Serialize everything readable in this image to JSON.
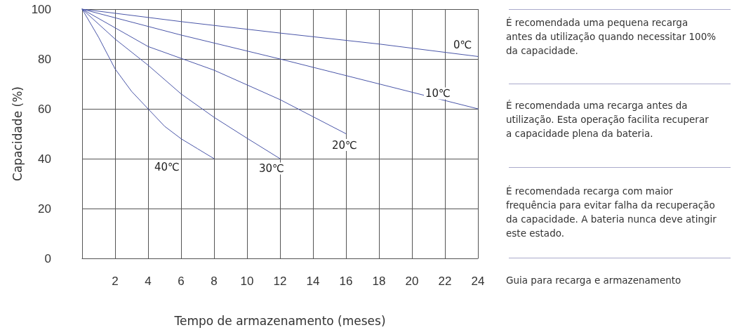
{
  "chart_data": {
    "type": "line",
    "xlabel": "Tempo de armazenamento (meses)",
    "ylabel": "Capacidade (%)",
    "xlim": [
      0,
      24
    ],
    "xticks": [
      2,
      4,
      6,
      8,
      10,
      12,
      14,
      16,
      18,
      20,
      22,
      24
    ],
    "ylim": [
      0,
      100
    ],
    "yticks": [
      0,
      20,
      40,
      60,
      80,
      100
    ],
    "grid": true,
    "marker": "none",
    "line_style": "solid",
    "series": [
      {
        "name": "0℃",
        "color": "#4a56a8",
        "x": [
          0,
          6,
          12,
          18,
          24
        ],
        "values": [
          100,
          95,
          90.4,
          86,
          81
        ]
      },
      {
        "name": "10℃",
        "color": "#4a56a8",
        "x": [
          0,
          6,
          12,
          18,
          24
        ],
        "values": [
          100,
          89.6,
          80,
          70,
          60
        ]
      },
      {
        "name": "20℃",
        "color": "#4a56a8",
        "x": [
          0,
          4,
          8,
          12,
          16
        ],
        "values": [
          100,
          85,
          75.5,
          63.7,
          50
        ]
      },
      {
        "name": "30℃",
        "color": "#4a56a8",
        "x": [
          0,
          2,
          4,
          6,
          8,
          10,
          12
        ],
        "values": [
          100,
          88,
          77.5,
          66,
          56.6,
          48.2,
          40
        ]
      },
      {
        "name": "40℃",
        "color": "#4a56a8",
        "x": [
          0,
          1,
          2,
          3,
          4,
          5,
          6,
          7,
          8
        ],
        "values": [
          100,
          88.7,
          76,
          67,
          60,
          53,
          48,
          44,
          40
        ]
      }
    ],
    "annotations": [
      "É recomendada uma pequena recarga antes da utilização quando necessitar 100% da capacidade.",
      "É recomendada uma recarga antes da utilização. Esta operação facilita recuperar a capacidade plena da bateria.",
      "É recomendada recarga com maior frequência para evitar falha da recuperação da capacidade. A bateria nunca deve atingir este estado.",
      "Guia para recarga e armazenamento"
    ]
  }
}
